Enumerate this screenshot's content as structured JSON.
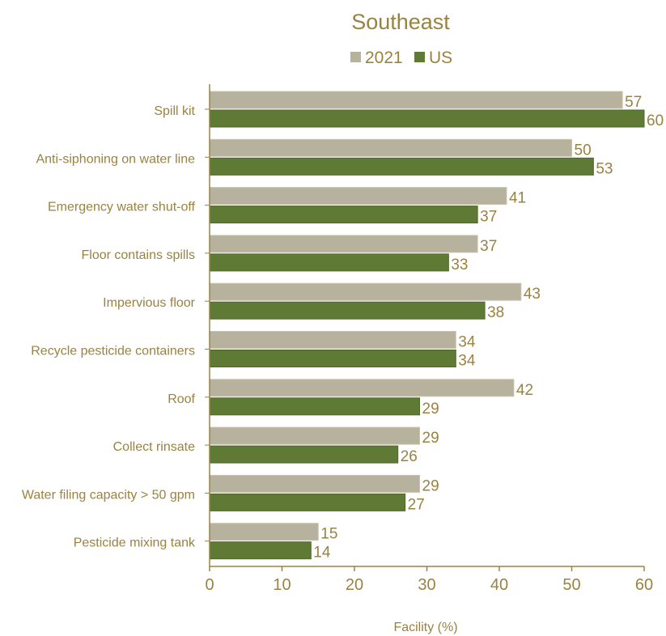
{
  "chart_data": {
    "type": "bar",
    "orientation": "horizontal",
    "title": "Southeast",
    "xlabel": "Facility (%)",
    "ylabel": "",
    "xlim": [
      0,
      60
    ],
    "xticks": [
      0,
      10,
      20,
      30,
      40,
      50,
      60
    ],
    "grid": false,
    "legend": "top",
    "categories": [
      "Spill kit",
      "Anti-siphoning on water line",
      "Emergency water shut-off",
      "Floor contains spills",
      "Impervious floor",
      "Recycle pesticide containers",
      "Roof",
      "Collect rinsate",
      "Water filing capacity > 50 gpm",
      "Pesticide mixing tank"
    ],
    "series": [
      {
        "name": "2021",
        "color": "#b7b29e",
        "values": [
          57,
          50,
          41,
          37,
          43,
          34,
          42,
          29,
          29,
          15
        ]
      },
      {
        "name": "US",
        "color": "#5f7a35",
        "values": [
          60,
          53,
          37,
          33,
          38,
          34,
          29,
          26,
          27,
          14
        ]
      }
    ]
  }
}
